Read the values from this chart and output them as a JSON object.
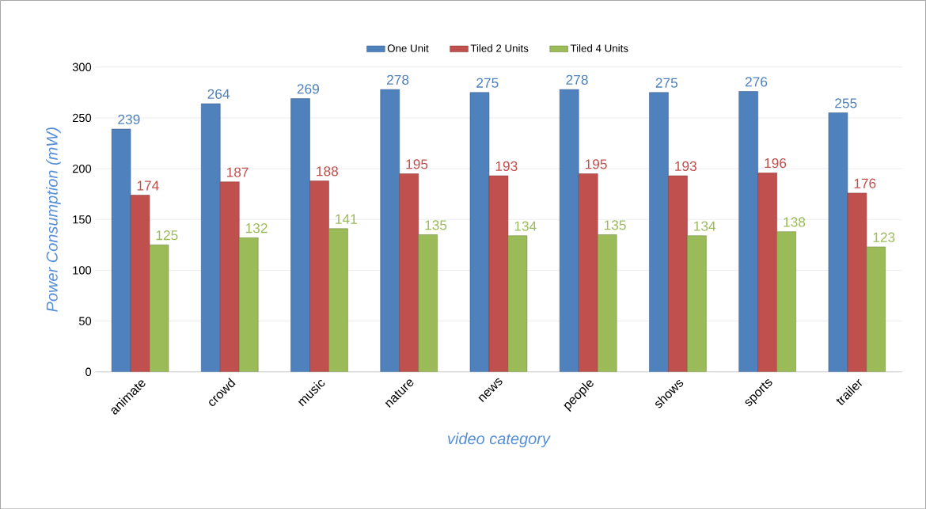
{
  "chart_data": {
    "type": "bar",
    "xlabel": "video category",
    "ylabel": "Power Consumption (mW)",
    "categories": [
      "animate",
      "crowd",
      "music",
      "nature",
      "news",
      "people",
      "shows",
      "sports",
      "trailer"
    ],
    "series": [
      {
        "name": "One Unit",
        "color": "#4f81bd",
        "values": [
          239,
          264,
          269,
          278,
          275,
          278,
          275,
          276,
          255
        ]
      },
      {
        "name": "Tiled 2 Units",
        "color": "#c0504d",
        "values": [
          174,
          187,
          188,
          195,
          193,
          195,
          193,
          196,
          176
        ]
      },
      {
        "name": "Tiled 4 Units",
        "color": "#9bbb59",
        "values": [
          125,
          132,
          141,
          135,
          134,
          135,
          134,
          138,
          123
        ]
      }
    ],
    "ylim": [
      0,
      300
    ],
    "yticks": [
      0,
      50,
      100,
      150,
      200,
      250,
      300
    ],
    "grid": "y",
    "legend": "top",
    "data_labels": true
  }
}
